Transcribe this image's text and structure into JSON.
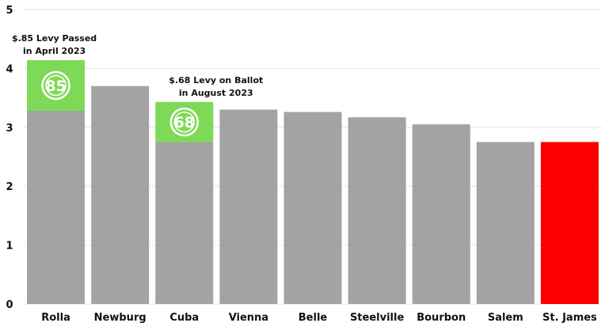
{
  "chart_data": {
    "type": "bar",
    "title": "",
    "xlabel": "",
    "ylabel": "",
    "ylim": [
      0,
      5
    ],
    "yticks": [
      0,
      1,
      2,
      3,
      4,
      5
    ],
    "grid": "horizontal",
    "categories": [
      "Rolla",
      "Newburg",
      "Cuba",
      "Vienna",
      "Belle",
      "Steelville",
      "Bourbon",
      "Salem",
      "St. James"
    ],
    "values": [
      3.28,
      3.7,
      2.75,
      3.3,
      3.26,
      3.17,
      3.05,
      2.75,
      2.75
    ],
    "levy_increments": [
      {
        "category": "Rolla",
        "from": 3.28,
        "to": 4.14,
        "badge": "85"
      },
      {
        "category": "Cuba",
        "from": 2.75,
        "to": 3.43,
        "badge": "68"
      }
    ],
    "annotations": [
      {
        "category": "Rolla",
        "lines": [
          "$.85 Levy Passed",
          "in April 2023"
        ]
      },
      {
        "category": "Cuba",
        "lines": [
          "$.68 Levy on Ballot",
          "in August 2023"
        ]
      }
    ],
    "colors": {
      "bar": "#a3a3a3",
      "highlight": "#ff0000",
      "levy": "#7ed957",
      "grid": "#e6e6e6"
    },
    "highlight_category": "St. James"
  }
}
